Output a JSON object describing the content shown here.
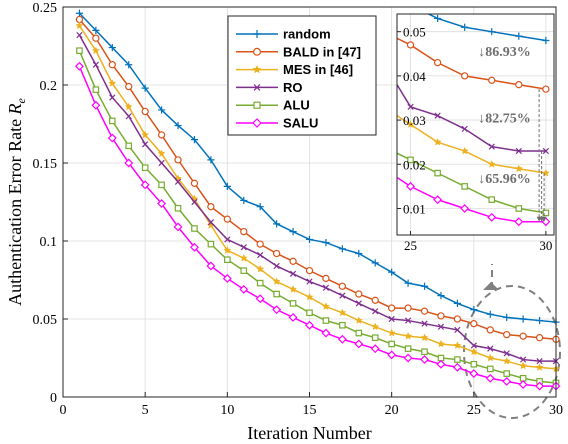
{
  "chart_data": [
    {
      "type": "line",
      "title": "",
      "xlabel": "Iteration Number",
      "ylabel": "Authentication Error Rate ",
      "ylabel_symbol": "R",
      "ylabel_subscript": "e",
      "xlim": [
        0,
        30
      ],
      "ylim": [
        0,
        0.25
      ],
      "xticks": [
        0,
        5,
        10,
        15,
        20,
        25,
        30
      ],
      "xtick_labels": [
        "0",
        "5",
        "10",
        "15",
        "20",
        "25",
        "30"
      ],
      "yticks": [
        0,
        0.05,
        0.1,
        0.15,
        0.2,
        0.25
      ],
      "ytick_labels": [
        "0",
        "0.05",
        "0.1",
        "0.15",
        "0.2",
        "0.25"
      ],
      "grid": true,
      "legend_position": "top-center",
      "x": [
        1,
        2,
        3,
        4,
        5,
        6,
        7,
        8,
        9,
        10,
        11,
        12,
        13,
        14,
        15,
        16,
        17,
        18,
        19,
        20,
        21,
        22,
        23,
        24,
        25,
        26,
        27,
        28,
        29,
        30
      ],
      "series": [
        {
          "name": "random",
          "color": "#0072BD",
          "marker": "plus",
          "values": [
            0.246,
            0.235,
            0.224,
            0.213,
            0.198,
            0.184,
            0.174,
            0.165,
            0.152,
            0.135,
            0.126,
            0.122,
            0.111,
            0.106,
            0.101,
            0.099,
            0.095,
            0.092,
            0.086,
            0.08,
            0.073,
            0.071,
            0.065,
            0.06,
            0.056,
            0.053,
            0.051,
            0.05,
            0.049,
            0.048
          ]
        },
        {
          "name": "BALD in [47]",
          "color": "#D95319",
          "marker": "circle",
          "values": [
            0.242,
            0.23,
            0.213,
            0.199,
            0.183,
            0.168,
            0.152,
            0.137,
            0.122,
            0.114,
            0.106,
            0.098,
            0.092,
            0.087,
            0.081,
            0.076,
            0.071,
            0.066,
            0.062,
            0.057,
            0.057,
            0.055,
            0.052,
            0.05,
            0.047,
            0.043,
            0.04,
            0.039,
            0.038,
            0.037
          ]
        },
        {
          "name": "MES in [46]",
          "color": "#EDB120",
          "marker": "star",
          "values": [
            0.238,
            0.222,
            0.201,
            0.186,
            0.168,
            0.156,
            0.14,
            0.127,
            0.11,
            0.094,
            0.089,
            0.082,
            0.074,
            0.069,
            0.064,
            0.058,
            0.054,
            0.049,
            0.045,
            0.041,
            0.039,
            0.038,
            0.034,
            0.033,
            0.029,
            0.025,
            0.023,
            0.02,
            0.019,
            0.018
          ]
        },
        {
          "name": "RO",
          "color": "#7E2F8E",
          "marker": "x",
          "values": [
            0.232,
            0.213,
            0.192,
            0.18,
            0.162,
            0.15,
            0.138,
            0.125,
            0.112,
            0.101,
            0.096,
            0.091,
            0.084,
            0.079,
            0.074,
            0.07,
            0.065,
            0.06,
            0.055,
            0.05,
            0.049,
            0.047,
            0.045,
            0.043,
            0.033,
            0.031,
            0.028,
            0.024,
            0.023,
            0.023
          ]
        },
        {
          "name": "ALU",
          "color": "#77AC30",
          "marker": "square",
          "values": [
            0.222,
            0.197,
            0.177,
            0.161,
            0.147,
            0.136,
            0.121,
            0.108,
            0.098,
            0.088,
            0.081,
            0.073,
            0.066,
            0.06,
            0.054,
            0.049,
            0.046,
            0.041,
            0.038,
            0.034,
            0.031,
            0.029,
            0.025,
            0.024,
            0.021,
            0.018,
            0.015,
            0.012,
            0.01,
            0.009
          ]
        },
        {
          "name": "SALU",
          "color": "#FF00FF",
          "marker": "diamond",
          "values": [
            0.212,
            0.187,
            0.166,
            0.15,
            0.136,
            0.124,
            0.109,
            0.096,
            0.084,
            0.076,
            0.069,
            0.063,
            0.056,
            0.051,
            0.046,
            0.041,
            0.037,
            0.034,
            0.031,
            0.027,
            0.025,
            0.024,
            0.021,
            0.019,
            0.015,
            0.012,
            0.01,
            0.008,
            0.007,
            0.007
          ]
        }
      ]
    },
    {
      "type": "line",
      "role": "inset",
      "xlim": [
        24.5,
        30.3
      ],
      "ylim": [
        0.004,
        0.054
      ],
      "xticks": [
        25,
        30
      ],
      "xtick_labels": [
        "25",
        "30"
      ],
      "yticks": [
        0.01,
        0.02,
        0.03,
        0.04,
        0.05
      ],
      "ytick_labels": [
        "0.01",
        "0.02",
        "0.03",
        "0.04",
        "0.05"
      ],
      "grid": true,
      "annotations": [
        {
          "text": "↓86.93%",
          "x": 27.5,
          "y": 0.0445
        },
        {
          "text": "↓82.75%",
          "x": 27.5,
          "y": 0.0295
        },
        {
          "text": "↓65.96%",
          "x": 27.5,
          "y": 0.0158
        }
      ]
    }
  ]
}
